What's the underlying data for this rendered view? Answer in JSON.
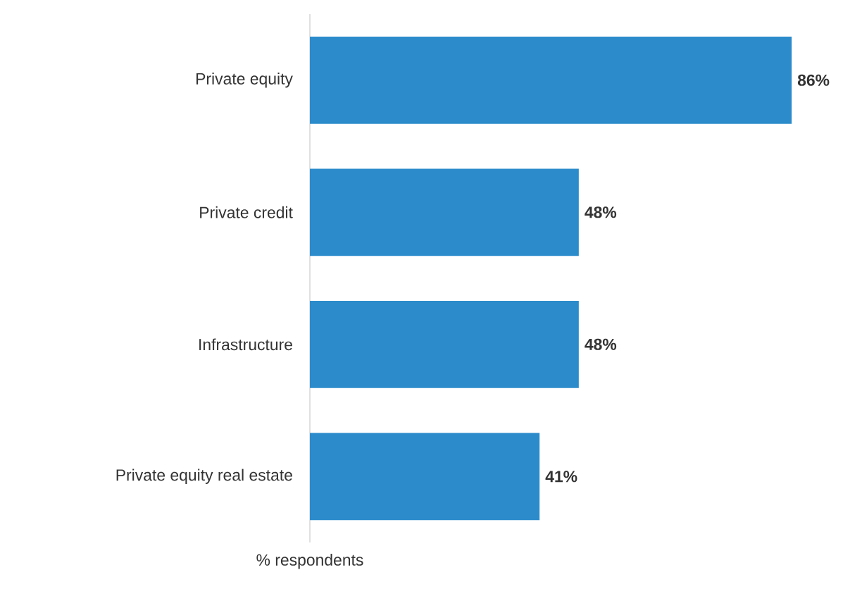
{
  "chart_data": {
    "type": "bar",
    "orientation": "horizontal",
    "categories": [
      "Private equity",
      "Private credit",
      "Infrastructure",
      "Private equity real estate"
    ],
    "values": [
      86,
      48,
      48,
      41
    ],
    "value_labels": [
      "86%",
      "48%",
      "48%",
      "41%"
    ],
    "color": "#2b8bcb",
    "xlabel": "% respondents"
  }
}
